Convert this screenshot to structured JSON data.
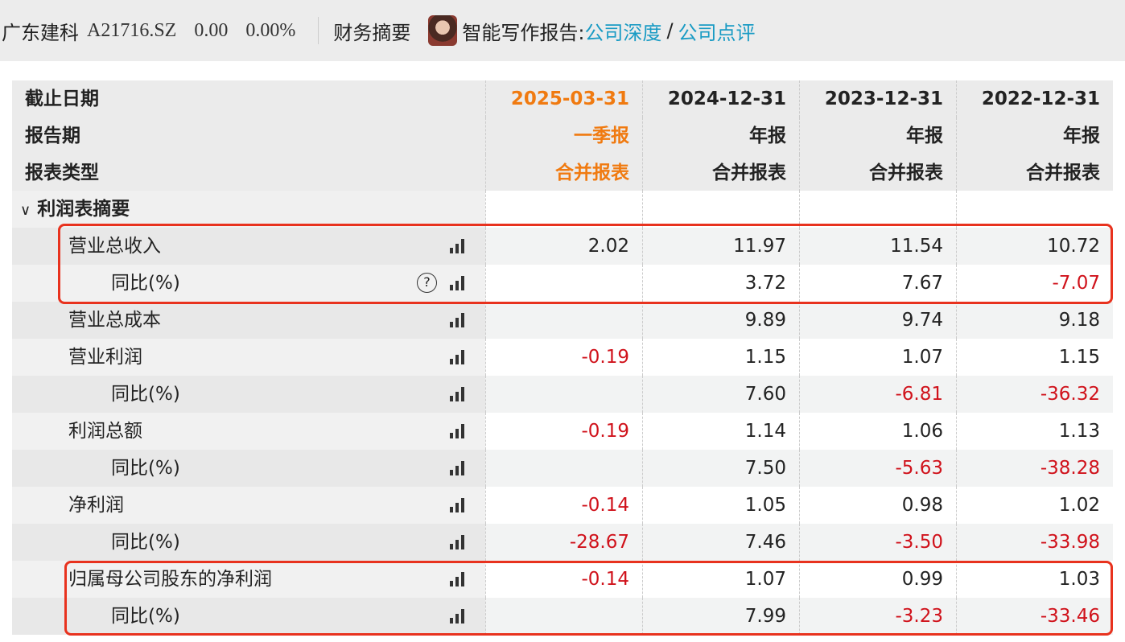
{
  "header": {
    "company": "广东建科",
    "code": "A21716.SZ",
    "price": "0.00",
    "change": "0.00%",
    "section": "财务摘要",
    "report_label": "智能写作报告:",
    "link1": "公司深度",
    "slash": "/",
    "link2": "公司点评"
  },
  "columns": {
    "labels": [
      "截止日期",
      "报告期",
      "报表类型"
    ],
    "dates": [
      "2025-03-31",
      "2024-12-31",
      "2023-12-31",
      "2022-12-31"
    ],
    "periods": [
      "一季报",
      "年报",
      "年报",
      "年报"
    ],
    "types": [
      "合并报表",
      "合并报表",
      "合并报表",
      "合并报表"
    ]
  },
  "section": "利润表摘要",
  "rows": [
    {
      "label": "营业总收入",
      "indent": false,
      "values": [
        "2.02",
        "11.97",
        "11.54",
        "10.72"
      ]
    },
    {
      "label": "同比(%)",
      "indent": true,
      "help": true,
      "values": [
        "",
        "3.72",
        "7.67",
        "-7.07"
      ]
    },
    {
      "label": "营业总成本",
      "indent": false,
      "values": [
        "",
        "9.89",
        "9.74",
        "9.18"
      ]
    },
    {
      "label": "营业利润",
      "indent": false,
      "values": [
        "-0.19",
        "1.15",
        "1.07",
        "1.15"
      ]
    },
    {
      "label": "同比(%)",
      "indent": true,
      "values": [
        "",
        "7.60",
        "-6.81",
        "-36.32"
      ]
    },
    {
      "label": "利润总额",
      "indent": false,
      "values": [
        "-0.19",
        "1.14",
        "1.06",
        "1.13"
      ]
    },
    {
      "label": "同比(%)",
      "indent": true,
      "values": [
        "",
        "7.50",
        "-5.63",
        "-38.28"
      ]
    },
    {
      "label": "净利润",
      "indent": false,
      "values": [
        "-0.14",
        "1.05",
        "0.98",
        "1.02"
      ]
    },
    {
      "label": "同比(%)",
      "indent": true,
      "values": [
        "-28.67",
        "7.46",
        "-3.50",
        "-33.98"
      ]
    },
    {
      "label": "归属母公司股东的净利润",
      "indent": false,
      "values": [
        "-0.14",
        "1.07",
        "0.99",
        "1.03"
      ]
    },
    {
      "label": "同比(%)",
      "indent": true,
      "values": [
        "",
        "7.99",
        "-3.23",
        "-33.46"
      ]
    }
  ],
  "colors": {
    "accent": "#f07a10",
    "negative": "#d0121b",
    "link": "#1a9bc4",
    "highlight": "#e8321e"
  }
}
